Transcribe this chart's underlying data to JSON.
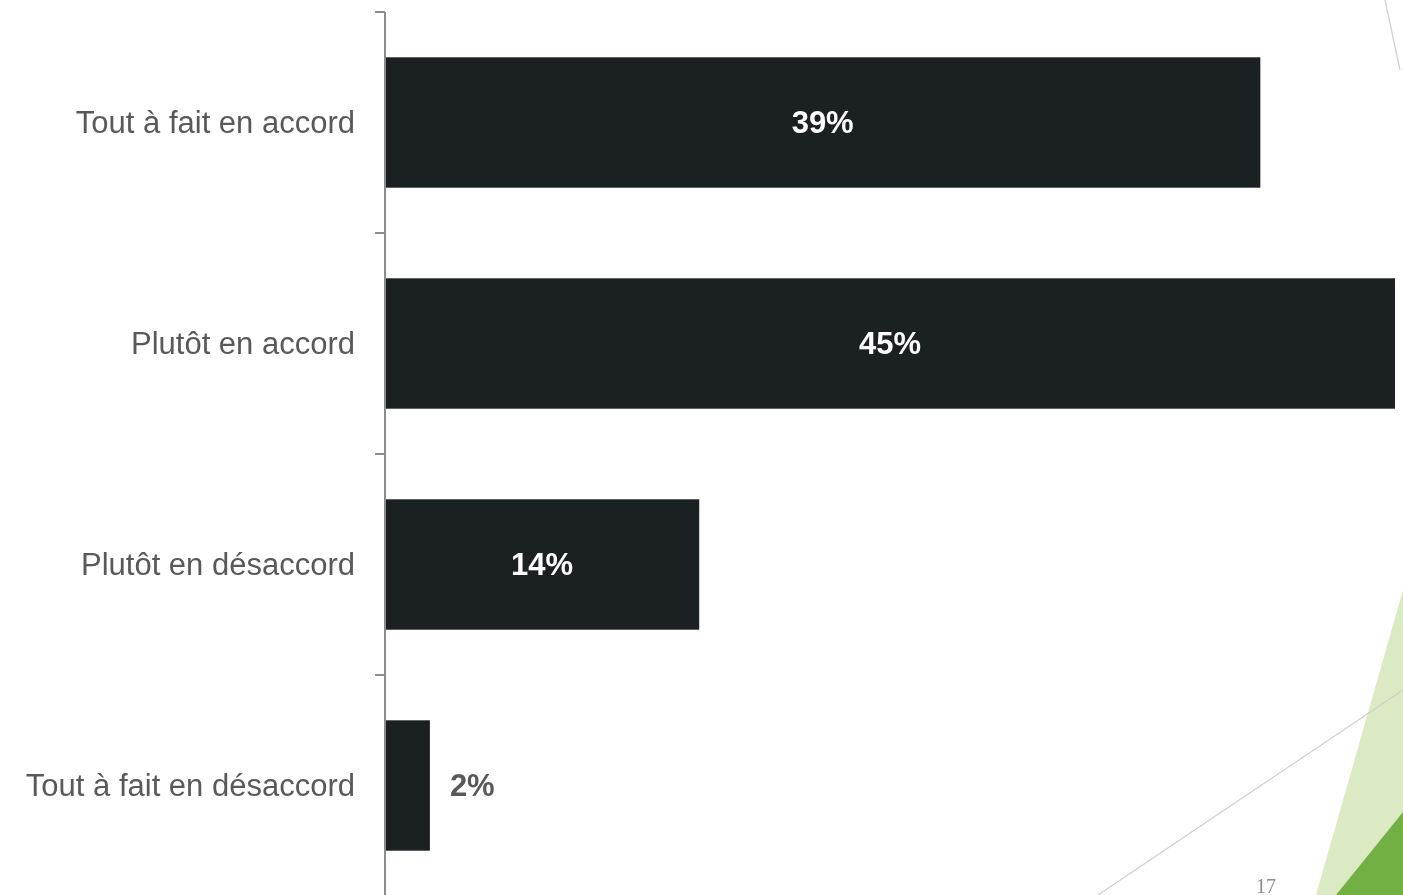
{
  "chart_data": {
    "type": "bar",
    "orientation": "horizontal",
    "categories": [
      "Tout à fait en accord",
      "Plutôt en accord",
      "Plutôt en désaccord",
      "Tout à fait en désaccord"
    ],
    "values": [
      39,
      45,
      14,
      2
    ],
    "color": "#1b2023",
    "value_labels": [
      "39%",
      "45%",
      "14%",
      "2%"
    ],
    "annotations": [
      "17"
    ]
  }
}
